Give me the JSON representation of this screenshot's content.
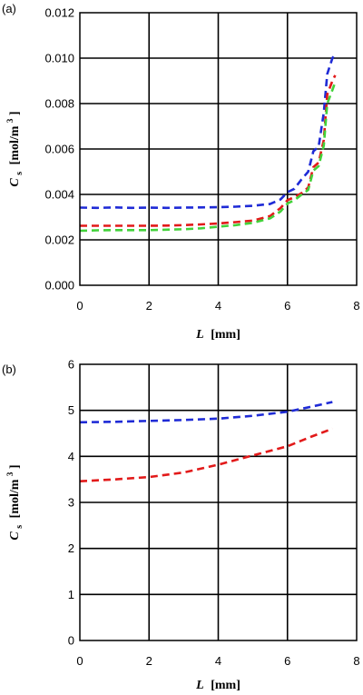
{
  "chart_data": [
    {
      "panel_label": "(a)",
      "type": "line",
      "line_style": "dashed",
      "grid": true,
      "xlim": [
        0,
        8
      ],
      "ylim": [
        0.0,
        0.012
      ],
      "x_ticks": [
        "0",
        "2",
        "4",
        "6",
        "8"
      ],
      "y_ticks": [
        "0.000",
        "0.002",
        "0.004",
        "0.006",
        "0.008",
        "0.010",
        "0.012"
      ],
      "xlabel": {
        "main": "L",
        "unit": "[mm]"
      },
      "ylabel": {
        "main": "C",
        "sub": "s",
        "unit": "[mol/m",
        "sup": "3",
        "close": "]"
      },
      "series": [
        {
          "color": "#1f2bd6",
          "points": [
            [
              0,
              0.00342
            ],
            [
              0.5,
              0.00341
            ],
            [
              1,
              0.00343
            ],
            [
              1.5,
              0.00341
            ],
            [
              2,
              0.00342
            ],
            [
              2.5,
              0.00341
            ],
            [
              3,
              0.00342
            ],
            [
              3.5,
              0.00343
            ],
            [
              4,
              0.00344
            ],
            [
              4.5,
              0.00346
            ],
            [
              5,
              0.0035
            ],
            [
              5.5,
              0.00358
            ],
            [
              5.8,
              0.00378
            ],
            [
              6.0,
              0.0041
            ],
            [
              6.2,
              0.00425
            ],
            [
              6.4,
              0.00465
            ],
            [
              6.6,
              0.005
            ],
            [
              6.75,
              0.0059
            ],
            [
              6.9,
              0.0061
            ],
            [
              7.05,
              0.0076
            ],
            [
              7.15,
              0.0093
            ],
            [
              7.3,
              0.01
            ],
            [
              7.38,
              0.0102
            ]
          ]
        },
        {
          "color": "#e21a1a",
          "points": [
            [
              0,
              0.00262
            ],
            [
              0.5,
              0.00262
            ],
            [
              1,
              0.00262
            ],
            [
              1.5,
              0.00262
            ],
            [
              2,
              0.00262
            ],
            [
              2.5,
              0.00263
            ],
            [
              3,
              0.00265
            ],
            [
              3.5,
              0.00268
            ],
            [
              4,
              0.00272
            ],
            [
              4.5,
              0.00278
            ],
            [
              5,
              0.00285
            ],
            [
              5.5,
              0.00305
            ],
            [
              5.8,
              0.0034
            ],
            [
              6.0,
              0.00375
            ],
            [
              6.2,
              0.00388
            ],
            [
              6.4,
              0.00405
            ],
            [
              6.6,
              0.0043
            ],
            [
              6.75,
              0.0052
            ],
            [
              6.9,
              0.0054
            ],
            [
              7.05,
              0.0064
            ],
            [
              7.15,
              0.0084
            ],
            [
              7.3,
              0.009
            ],
            [
              7.38,
              0.00925
            ]
          ]
        },
        {
          "color": "#42d23a",
          "points": [
            [
              0,
              0.0024
            ],
            [
              0.5,
              0.00242
            ],
            [
              1,
              0.00243
            ],
            [
              1.5,
              0.00243
            ],
            [
              2,
              0.00243
            ],
            [
              2.5,
              0.00245
            ],
            [
              3,
              0.00247
            ],
            [
              3.5,
              0.00251
            ],
            [
              4,
              0.00258
            ],
            [
              4.5,
              0.00265
            ],
            [
              5,
              0.00275
            ],
            [
              5.5,
              0.00295
            ],
            [
              5.8,
              0.00325
            ],
            [
              6.0,
              0.0036
            ],
            [
              6.2,
              0.00375
            ],
            [
              6.4,
              0.00398
            ],
            [
              6.6,
              0.0042
            ],
            [
              6.75,
              0.00505
            ],
            [
              6.9,
              0.00525
            ],
            [
              7.05,
              0.00615
            ],
            [
              7.15,
              0.008
            ],
            [
              7.3,
              0.0086
            ],
            [
              7.38,
              0.00895
            ]
          ]
        }
      ]
    },
    {
      "panel_label": "(b)",
      "type": "line",
      "line_style": "dashed",
      "grid": true,
      "xlim": [
        0,
        8
      ],
      "ylim": [
        0,
        6
      ],
      "x_ticks": [
        "0",
        "2",
        "4",
        "6",
        "8"
      ],
      "y_ticks": [
        "0",
        "1",
        "2",
        "3",
        "4",
        "5",
        "6"
      ],
      "xlabel": {
        "main": "L",
        "unit": "[mm]"
      },
      "ylabel": {
        "main": "C",
        "sub": "s",
        "unit": "[mol/m",
        "sup": "3",
        "close": "]"
      },
      "series": [
        {
          "color": "#1f2bd6",
          "points": [
            [
              0,
              4.74
            ],
            [
              1,
              4.75
            ],
            [
              2,
              4.77
            ],
            [
              3,
              4.79
            ],
            [
              4,
              4.82
            ],
            [
              5,
              4.88
            ],
            [
              6,
              4.97
            ],
            [
              6.7,
              5.08
            ],
            [
              7.3,
              5.18
            ]
          ]
        },
        {
          "color": "#e21a1a",
          "points": [
            [
              0,
              3.46
            ],
            [
              1,
              3.5
            ],
            [
              2,
              3.55
            ],
            [
              3,
              3.65
            ],
            [
              4,
              3.82
            ],
            [
              5,
              4.02
            ],
            [
              6,
              4.22
            ],
            [
              6.7,
              4.43
            ],
            [
              7.3,
              4.6
            ]
          ]
        }
      ]
    }
  ]
}
